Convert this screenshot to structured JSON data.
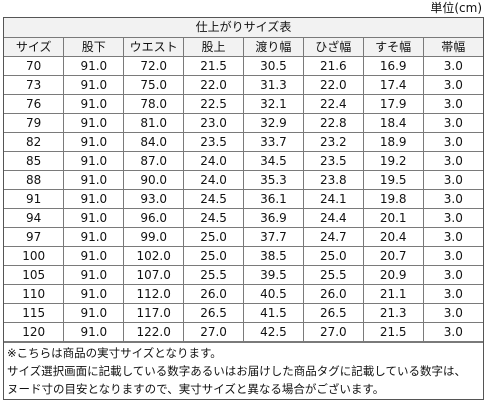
{
  "unit_label": "単位(cm)",
  "table": {
    "title": "仕上がりサイズ表",
    "headers": [
      "サイズ",
      "股下",
      "ウエスト",
      "股上",
      "渡り幅",
      "ひざ幅",
      "すそ幅",
      "帯幅"
    ],
    "rows": [
      [
        "70",
        "91.0",
        "72.0",
        "21.5",
        "30.5",
        "21.6",
        "16.9",
        "3.0"
      ],
      [
        "73",
        "91.0",
        "75.0",
        "22.0",
        "31.3",
        "22.0",
        "17.4",
        "3.0"
      ],
      [
        "76",
        "91.0",
        "78.0",
        "22.5",
        "32.1",
        "22.4",
        "17.9",
        "3.0"
      ],
      [
        "79",
        "91.0",
        "81.0",
        "23.0",
        "32.9",
        "22.8",
        "18.4",
        "3.0"
      ],
      [
        "82",
        "91.0",
        "84.0",
        "23.5",
        "33.7",
        "23.2",
        "18.9",
        "3.0"
      ],
      [
        "85",
        "91.0",
        "87.0",
        "24.0",
        "34.5",
        "23.5",
        "19.2",
        "3.0"
      ],
      [
        "88",
        "91.0",
        "90.0",
        "24.0",
        "35.3",
        "23.8",
        "19.5",
        "3.0"
      ],
      [
        "91",
        "91.0",
        "93.0",
        "24.5",
        "36.1",
        "24.1",
        "19.8",
        "3.0"
      ],
      [
        "94",
        "91.0",
        "96.0",
        "24.5",
        "36.9",
        "24.4",
        "20.1",
        "3.0"
      ],
      [
        "97",
        "91.0",
        "99.0",
        "25.0",
        "37.7",
        "24.7",
        "20.4",
        "3.0"
      ],
      [
        "100",
        "91.0",
        "102.0",
        "25.0",
        "38.5",
        "25.0",
        "20.7",
        "3.0"
      ],
      [
        "105",
        "91.0",
        "107.0",
        "25.5",
        "39.5",
        "25.5",
        "20.9",
        "3.0"
      ],
      [
        "110",
        "91.0",
        "112.0",
        "26.0",
        "40.5",
        "26.0",
        "21.1",
        "3.0"
      ],
      [
        "115",
        "91.0",
        "117.0",
        "26.5",
        "41.5",
        "26.5",
        "21.3",
        "3.0"
      ],
      [
        "120",
        "91.0",
        "122.0",
        "27.0",
        "42.5",
        "27.0",
        "21.5",
        "3.0"
      ]
    ]
  },
  "notes": [
    "※こちらは商品の実寸サイズとなります。",
    "サイズ選択画面に記載している数字あるいはお届けした商品タグに記載している数字は、",
    "ヌード寸の目安となりますので、実寸サイズと異なる場合がございます。"
  ]
}
